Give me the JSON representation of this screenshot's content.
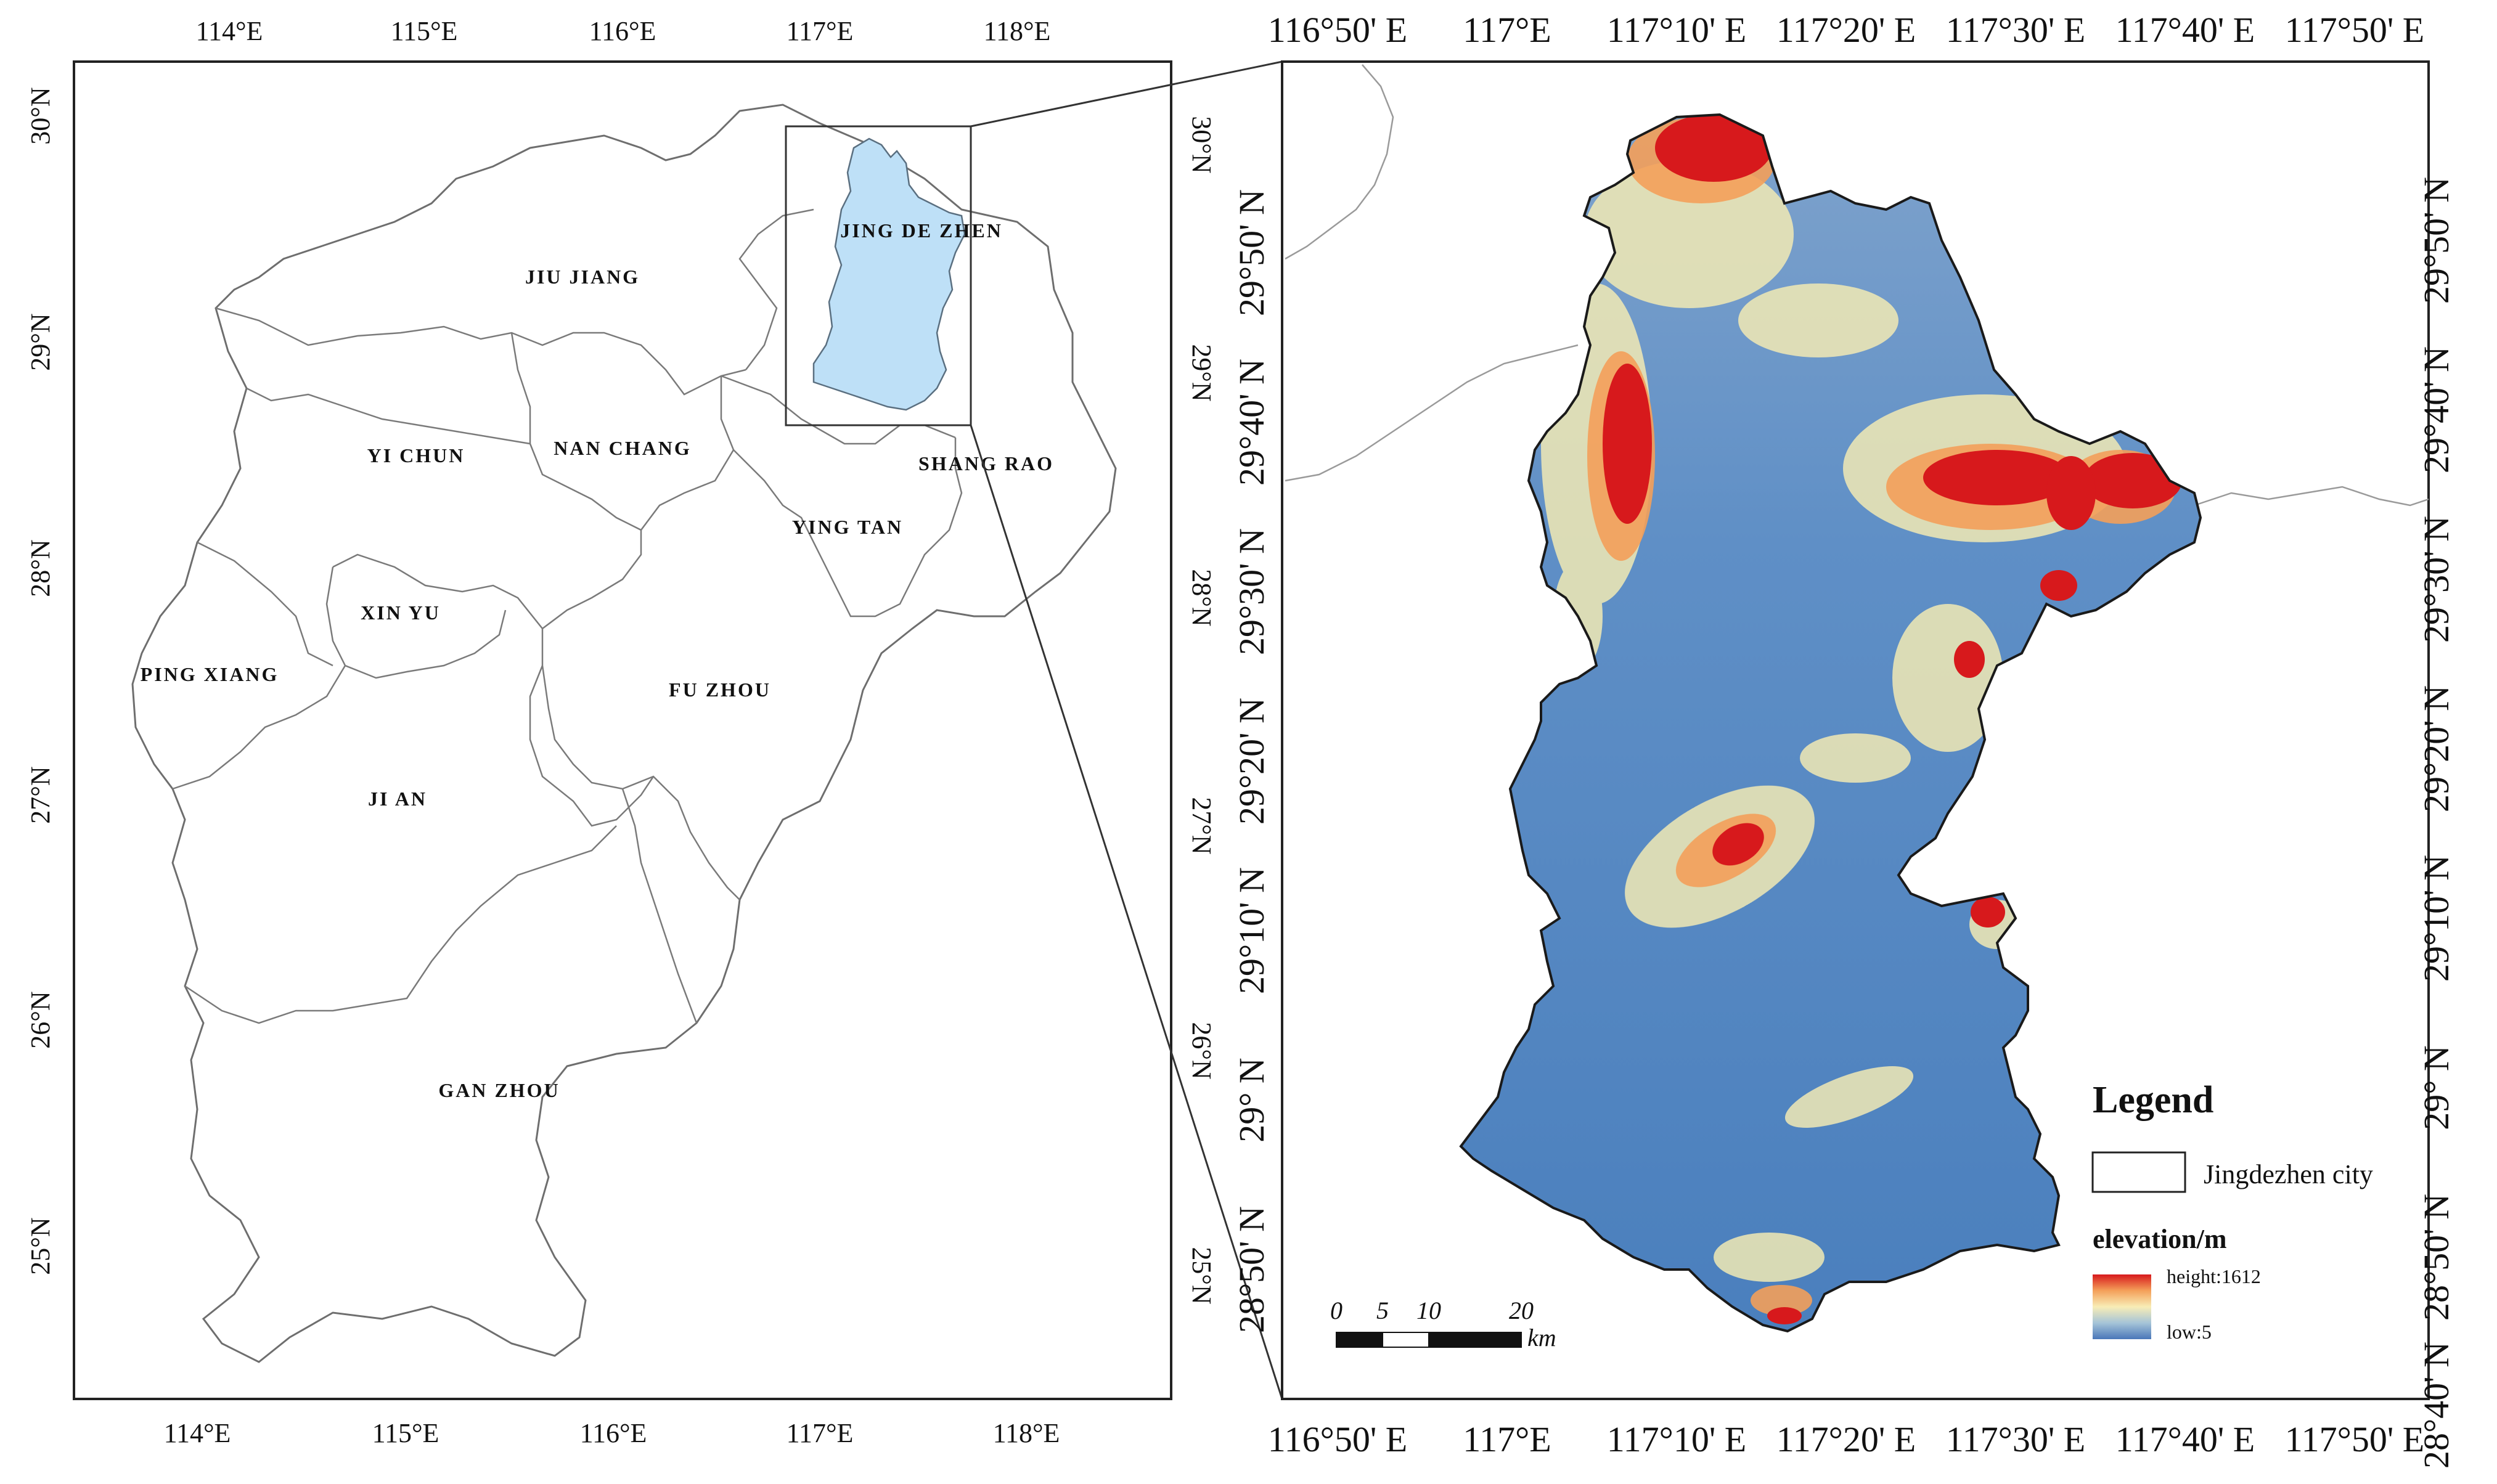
{
  "left_map": {
    "top_ticks": [
      "114°E",
      "115°E",
      "116°E",
      "117°E",
      "118°E"
    ],
    "bottom_ticks": [
      "114°E",
      "115°E",
      "116°E",
      "117°E",
      "118°E"
    ],
    "left_ticks": [
      "30°N",
      "29°N",
      "28°N",
      "27°N",
      "26°N",
      "25°N"
    ],
    "right_ticks": [
      "30°N",
      "29°N",
      "28°N",
      "27°N",
      "26°N",
      "25°N"
    ],
    "prefectures": {
      "jingdezhen": "JING DE ZHEN",
      "jiujiang": "JIU JIANG",
      "yichun": "YI CHUN",
      "nanchang": "NAN CHANG",
      "shangrao": "SHANG RAO",
      "yingtan": "YING TAN",
      "xinyu": "XIN YU",
      "pingxiang": "PING XIANG",
      "fuzhou": "FU ZHOU",
      "jian": "JI AN",
      "ganzhou": "GAN ZHOU"
    },
    "highlight_color": "#bee0f7"
  },
  "right_map": {
    "top_ticks": [
      "116°50' E",
      "117°E",
      "117°10' E",
      "117°20' E",
      "117°30' E",
      "117°40' E",
      "117°50' E"
    ],
    "bottom_ticks": [
      "116°50' E",
      "117°E",
      "117°10' E",
      "117°20' E",
      "117°30' E",
      "117°40' E",
      "117°50' E"
    ],
    "left_ticks": [
      "29°50' N",
      "29°40' N",
      "29°30' N",
      "29°20' N",
      "29°10' N",
      "29° N",
      "28°50' N"
    ],
    "right_ticks": [
      "29°50' N",
      "29°40' N",
      "29°30' N",
      "29°20' N",
      "29°10' N",
      "29° N",
      "28°50' N",
      "28°40' N"
    ],
    "legend": {
      "title": "Legend",
      "boundary_label": "Jingdezhen city",
      "elevation_title": "elevation/m",
      "high_label": "height:1612",
      "low_label": "low:5"
    },
    "scale_bar": {
      "labels": [
        "0",
        "5",
        "10",
        "20"
      ],
      "unit": "km"
    },
    "elevation_colors": [
      "#d7191c",
      "#f4a05a",
      "#f8edb6",
      "#a5c4d8",
      "#4a77b9"
    ]
  }
}
